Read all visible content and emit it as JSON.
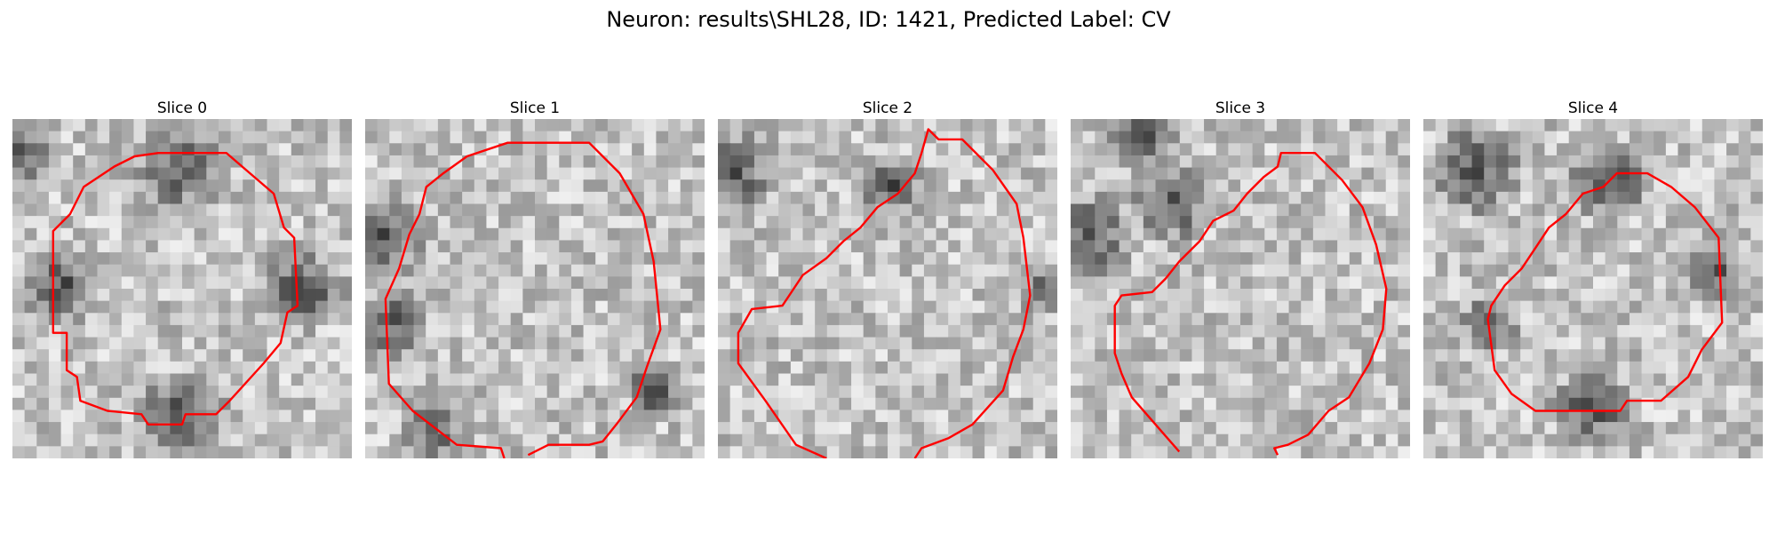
{
  "figure": {
    "suptitle": "Neuron: results\\SHL28, ID: 1421, Predicted Label: CV"
  },
  "colors": {
    "contour": "#ff0000"
  },
  "slices": [
    {
      "title": "Slice 0",
      "texture_seed": 11,
      "dark_blobs": [
        [
          0.05,
          0.1,
          0.1
        ],
        [
          0.5,
          0.14,
          0.16
        ],
        [
          0.5,
          0.88,
          0.16
        ],
        [
          0.14,
          0.5,
          0.14
        ],
        [
          0.86,
          0.5,
          0.14
        ]
      ],
      "contour": [
        [
          0.43,
          0.1
        ],
        [
          0.63,
          0.1
        ],
        [
          0.7,
          0.16
        ],
        [
          0.77,
          0.22
        ],
        [
          0.8,
          0.32
        ],
        [
          0.83,
          0.35
        ],
        [
          0.84,
          0.55
        ],
        [
          0.81,
          0.57
        ],
        [
          0.79,
          0.66
        ],
        [
          0.74,
          0.72
        ],
        [
          0.64,
          0.83
        ],
        [
          0.6,
          0.87
        ],
        [
          0.51,
          0.87
        ],
        [
          0.5,
          0.9
        ],
        [
          0.4,
          0.9
        ],
        [
          0.38,
          0.87
        ],
        [
          0.28,
          0.86
        ],
        [
          0.2,
          0.83
        ],
        [
          0.19,
          0.76
        ],
        [
          0.16,
          0.74
        ],
        [
          0.16,
          0.63
        ],
        [
          0.12,
          0.63
        ],
        [
          0.12,
          0.33
        ],
        [
          0.17,
          0.28
        ],
        [
          0.21,
          0.2
        ],
        [
          0.3,
          0.14
        ],
        [
          0.36,
          0.11
        ]
      ],
      "closed": true
    },
    {
      "title": "Slice 1",
      "texture_seed": 23,
      "dark_blobs": [
        [
          0.05,
          0.35,
          0.14
        ],
        [
          0.08,
          0.6,
          0.12
        ],
        [
          0.2,
          0.9,
          0.12
        ],
        [
          0.85,
          0.8,
          0.1
        ]
      ],
      "contour": [
        [
          0.41,
          1.0
        ],
        [
          0.4,
          0.97
        ],
        [
          0.27,
          0.96
        ],
        [
          0.14,
          0.86
        ],
        [
          0.07,
          0.78
        ],
        [
          0.06,
          0.53
        ],
        [
          0.1,
          0.44
        ],
        [
          0.13,
          0.34
        ],
        [
          0.16,
          0.28
        ],
        [
          0.18,
          0.2
        ],
        [
          0.23,
          0.16
        ],
        [
          0.3,
          0.11
        ],
        [
          0.42,
          0.07
        ],
        [
          0.66,
          0.07
        ],
        [
          0.75,
          0.16
        ],
        [
          0.82,
          0.28
        ],
        [
          0.85,
          0.42
        ],
        [
          0.87,
          0.62
        ],
        [
          0.83,
          0.73
        ],
        [
          0.8,
          0.82
        ],
        [
          0.74,
          0.9
        ],
        [
          0.7,
          0.95
        ],
        [
          0.66,
          0.96
        ],
        [
          0.54,
          0.96
        ],
        [
          0.48,
          0.99
        ]
      ],
      "closed": false
    },
    {
      "title": "Slice 2",
      "texture_seed": 37,
      "dark_blobs": [
        [
          0.05,
          0.15,
          0.14
        ],
        [
          0.5,
          0.2,
          0.12
        ],
        [
          0.95,
          0.5,
          0.08
        ]
      ],
      "contour": [
        [
          0.32,
          1.0
        ],
        [
          0.23,
          0.96
        ],
        [
          0.14,
          0.83
        ],
        [
          0.06,
          0.72
        ],
        [
          0.06,
          0.63
        ],
        [
          0.1,
          0.56
        ],
        [
          0.19,
          0.55
        ],
        [
          0.25,
          0.46
        ],
        [
          0.32,
          0.41
        ],
        [
          0.37,
          0.36
        ],
        [
          0.42,
          0.32
        ],
        [
          0.47,
          0.26
        ],
        [
          0.53,
          0.22
        ],
        [
          0.58,
          0.16
        ],
        [
          0.6,
          0.1
        ],
        [
          0.62,
          0.03
        ],
        [
          0.65,
          0.06
        ],
        [
          0.72,
          0.06
        ],
        [
          0.81,
          0.15
        ],
        [
          0.88,
          0.25
        ],
        [
          0.9,
          0.35
        ],
        [
          0.92,
          0.52
        ],
        [
          0.9,
          0.62
        ],
        [
          0.87,
          0.7
        ],
        [
          0.84,
          0.8
        ],
        [
          0.75,
          0.9
        ],
        [
          0.68,
          0.94
        ],
        [
          0.6,
          0.97
        ],
        [
          0.58,
          1.0
        ]
      ],
      "closed": false
    },
    {
      "title": "Slice 3",
      "texture_seed": 53,
      "dark_blobs": [
        [
          0.05,
          0.35,
          0.16
        ],
        [
          0.3,
          0.25,
          0.14
        ],
        [
          0.2,
          0.05,
          0.12
        ]
      ],
      "contour": [
        [
          0.32,
          0.98
        ],
        [
          0.25,
          0.9
        ],
        [
          0.18,
          0.82
        ],
        [
          0.15,
          0.75
        ],
        [
          0.13,
          0.69
        ],
        [
          0.13,
          0.55
        ],
        [
          0.15,
          0.52
        ],
        [
          0.24,
          0.51
        ],
        [
          0.28,
          0.47
        ],
        [
          0.32,
          0.42
        ],
        [
          0.38,
          0.36
        ],
        [
          0.42,
          0.3
        ],
        [
          0.48,
          0.27
        ],
        [
          0.52,
          0.22
        ],
        [
          0.57,
          0.17
        ],
        [
          0.61,
          0.14
        ],
        [
          0.62,
          0.1
        ],
        [
          0.65,
          0.1
        ],
        [
          0.72,
          0.1
        ],
        [
          0.8,
          0.18
        ],
        [
          0.86,
          0.26
        ],
        [
          0.9,
          0.37
        ],
        [
          0.93,
          0.5
        ],
        [
          0.92,
          0.62
        ],
        [
          0.88,
          0.72
        ],
        [
          0.82,
          0.82
        ],
        [
          0.76,
          0.86
        ],
        [
          0.7,
          0.93
        ],
        [
          0.64,
          0.96
        ],
        [
          0.6,
          0.97
        ],
        [
          0.61,
          0.99
        ]
      ],
      "closed": false
    },
    {
      "title": "Slice 4",
      "texture_seed": 71,
      "dark_blobs": [
        [
          0.15,
          0.15,
          0.16
        ],
        [
          0.55,
          0.18,
          0.14
        ],
        [
          0.85,
          0.45,
          0.12
        ],
        [
          0.5,
          0.85,
          0.14
        ],
        [
          0.2,
          0.6,
          0.1
        ]
      ],
      "contour": [
        [
          0.57,
          0.16
        ],
        [
          0.66,
          0.16
        ],
        [
          0.73,
          0.2
        ],
        [
          0.8,
          0.26
        ],
        [
          0.87,
          0.35
        ],
        [
          0.88,
          0.6
        ],
        [
          0.82,
          0.68
        ],
        [
          0.78,
          0.76
        ],
        [
          0.7,
          0.83
        ],
        [
          0.6,
          0.83
        ],
        [
          0.58,
          0.86
        ],
        [
          0.33,
          0.86
        ],
        [
          0.26,
          0.81
        ],
        [
          0.21,
          0.74
        ],
        [
          0.19,
          0.59
        ],
        [
          0.2,
          0.55
        ],
        [
          0.24,
          0.49
        ],
        [
          0.29,
          0.44
        ],
        [
          0.33,
          0.38
        ],
        [
          0.37,
          0.32
        ],
        [
          0.42,
          0.28
        ],
        [
          0.47,
          0.22
        ],
        [
          0.53,
          0.2
        ]
      ],
      "closed": true
    }
  ]
}
